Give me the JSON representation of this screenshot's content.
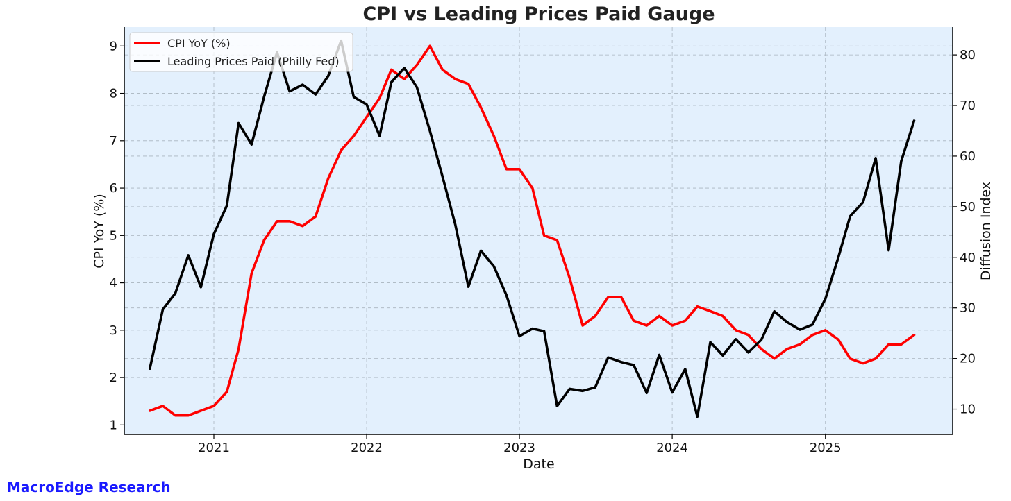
{
  "chart_data": {
    "type": "line",
    "title": "CPI vs Leading Prices Paid Gauge",
    "xlabel": "Date",
    "ylabel_left": "CPI YoY (%)",
    "ylabel_right": "Diffusion Index",
    "x_tick_labels": [
      "2021",
      "2022",
      "2023",
      "2024",
      "2025"
    ],
    "y_left_ticks": [
      "1",
      "2",
      "3",
      "4",
      "5",
      "6",
      "7",
      "8",
      "9"
    ],
    "y_right_ticks": [
      "10",
      "20",
      "30",
      "40",
      "50",
      "60",
      "70",
      "80"
    ],
    "xlim": [
      "2020-06-01",
      "2025-11-01"
    ],
    "ylim_left": [
      0.8,
      9.4
    ],
    "ylim_right": [
      5.0,
      85.5
    ],
    "grid": true,
    "legend_position": "top-left",
    "background_color": "#e3f0fd",
    "dates": [
      "2020-08",
      "2020-09",
      "2020-10",
      "2020-11",
      "2020-12",
      "2021-01",
      "2021-02",
      "2021-03",
      "2021-04",
      "2021-05",
      "2021-06",
      "2021-07",
      "2021-08",
      "2021-09",
      "2021-10",
      "2021-11",
      "2021-12",
      "2022-01",
      "2022-02",
      "2022-03",
      "2022-04",
      "2022-05",
      "2022-06",
      "2022-07",
      "2022-08",
      "2022-09",
      "2022-10",
      "2022-11",
      "2022-12",
      "2023-01",
      "2023-02",
      "2023-03",
      "2023-04",
      "2023-05",
      "2023-06",
      "2023-07",
      "2023-08",
      "2023-09",
      "2023-10",
      "2023-11",
      "2023-12",
      "2024-01",
      "2024-02",
      "2024-03",
      "2024-04",
      "2024-05",
      "2024-06",
      "2024-07",
      "2024-08",
      "2024-09",
      "2024-10",
      "2024-11",
      "2024-12",
      "2025-01",
      "2025-02",
      "2025-03",
      "2025-04",
      "2025-05",
      "2025-06",
      "2025-07",
      "2025-08"
    ],
    "series": [
      {
        "name": "CPI YoY (%)",
        "axis": "left",
        "color": "#ff0000",
        "values": [
          1.3,
          1.4,
          1.2,
          1.2,
          1.3,
          1.4,
          1.7,
          2.6,
          4.2,
          4.9,
          5.3,
          5.3,
          5.2,
          5.4,
          6.2,
          6.8,
          7.1,
          7.5,
          7.9,
          8.5,
          8.3,
          8.6,
          9.0,
          8.5,
          8.3,
          8.2,
          7.7,
          7.1,
          6.4,
          6.4,
          6.0,
          5.0,
          4.9,
          4.1,
          3.1,
          3.3,
          3.7,
          3.7,
          3.2,
          3.1,
          3.3,
          3.1,
          3.2,
          3.5,
          3.4,
          3.3,
          3.0,
          2.9,
          2.6,
          2.4,
          2.6,
          2.7,
          2.9,
          3.0,
          2.8,
          2.4,
          2.3,
          2.4,
          2.7,
          2.7,
          2.9
        ]
      },
      {
        "name": "Leading Prices Paid (Philly Fed)",
        "axis": "right",
        "color": "#000000",
        "values": [
          18.0,
          29.7,
          32.9,
          40.4,
          34.1,
          44.6,
          50.2,
          66.5,
          62.3,
          71.7,
          80.5,
          72.8,
          74.1,
          72.2,
          75.8,
          82.8,
          71.7,
          70.2,
          64.0,
          74.6,
          77.4,
          73.6,
          65.0,
          56.0,
          46.4,
          34.2,
          41.3,
          38.2,
          32.5,
          24.4,
          25.9,
          25.4,
          10.6,
          14.0,
          13.6,
          14.3,
          20.2,
          19.3,
          18.7,
          13.2,
          20.7,
          13.3,
          17.9,
          8.5,
          23.2,
          20.6,
          23.8,
          21.2,
          23.7,
          29.3,
          27.2,
          25.7,
          26.7,
          31.8,
          40.0,
          48.1,
          50.9,
          59.6,
          41.4,
          59.0,
          67.0
        ]
      }
    ]
  },
  "watermark": {
    "text": "MacroEdge Research",
    "color": "#1a1aff"
  }
}
